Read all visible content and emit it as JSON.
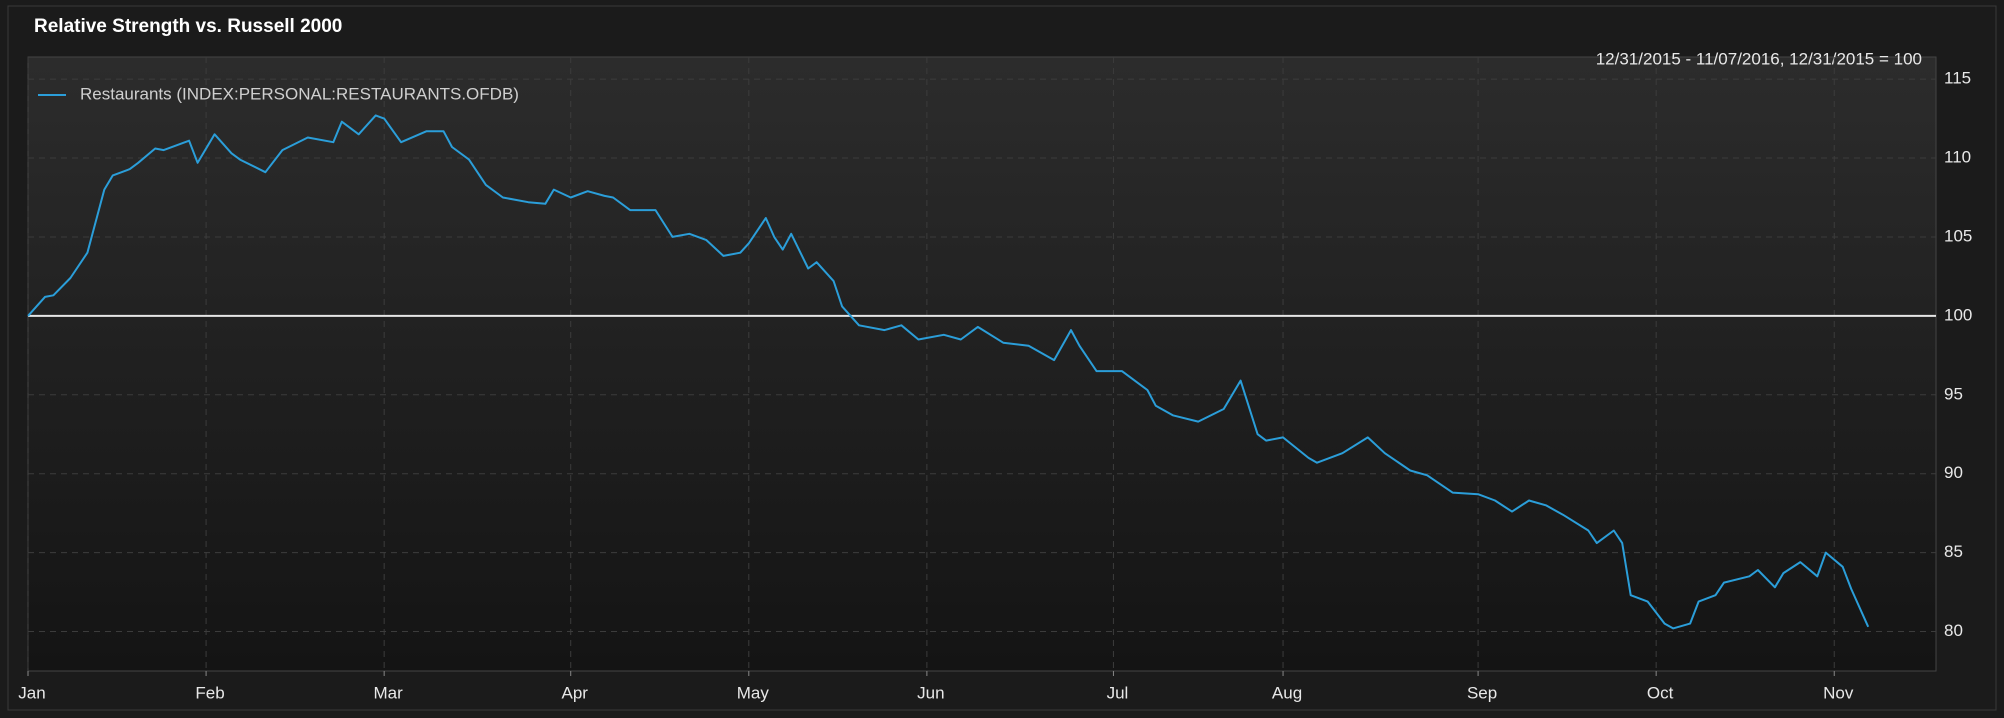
{
  "chart_data": {
    "type": "line",
    "title": "Relative Strength vs. Russell 2000",
    "subtitle": "12/31/2015 - 11/07/2016, 12/31/2015 = 100",
    "x": [
      0,
      2,
      3,
      5,
      7,
      9,
      10,
      12,
      13,
      15,
      16,
      19,
      20,
      22,
      24,
      25,
      28,
      30,
      33,
      36,
      37,
      39,
      41,
      42,
      44,
      47,
      49,
      50,
      52,
      54,
      56,
      59,
      61,
      62,
      64,
      66,
      68,
      69,
      71,
      74,
      76,
      78,
      80,
      82,
      84,
      85,
      87,
      88,
      89,
      90,
      92,
      93,
      95,
      96,
      98,
      101,
      103,
      105,
      108,
      110,
      112,
      115,
      118,
      121,
      123,
      124,
      126,
      129,
      132,
      133,
      135,
      138,
      141,
      143,
      145,
      146,
      148,
      151,
      152,
      155,
      158,
      160,
      163,
      165,
      168,
      171,
      173,
      175,
      177,
      179,
      181,
      184,
      185,
      187,
      188,
      189,
      191,
      193,
      194,
      196,
      197,
      199,
      200,
      203,
      204,
      206,
      207,
      209,
      211,
      212,
      214,
      215,
      217
    ],
    "series": [
      {
        "name": "Restaurants (INDEX:PERSONAL:RESTAURANTS.OFDB)",
        "color": "#2b9ed9",
        "values": [
          100,
          101.2,
          101.3,
          102.4,
          104,
          108,
          108.9,
          109.3,
          109.7,
          110.6,
          110.5,
          111.1,
          109.7,
          111.5,
          110.3,
          109.9,
          109.1,
          110.5,
          111.3,
          111,
          112.3,
          111.5,
          112.7,
          112.5,
          111,
          111.7,
          111.7,
          110.7,
          109.9,
          108.3,
          107.5,
          107.2,
          107.1,
          108,
          107.5,
          107.9,
          107.6,
          107.5,
          106.7,
          106.7,
          105,
          105.2,
          104.8,
          103.8,
          104,
          104.6,
          106.2,
          105,
          104.2,
          105.2,
          103,
          103.4,
          102.2,
          100.6,
          99.4,
          99.1,
          99.4,
          98.5,
          98.8,
          98.5,
          99.3,
          98.3,
          98.1,
          97.2,
          99.1,
          98.1,
          96.5,
          96.5,
          95.3,
          94.3,
          93.7,
          93.3,
          94.1,
          95.9,
          92.5,
          92.1,
          92.3,
          91,
          90.7,
          91.3,
          92.3,
          91.3,
          90.2,
          89.9,
          88.8,
          88.7,
          88.3,
          87.6,
          88.3,
          88,
          87.4,
          86.4,
          85.6,
          86.4,
          85.6,
          82.3,
          81.9,
          80.5,
          80.2,
          80.5,
          81.9,
          82.3,
          83.1,
          83.5,
          83.9,
          82.8,
          83.7,
          84.4,
          83.5,
          85,
          84.1,
          82.7,
          80.3
        ]
      }
    ],
    "xlim": [
      0,
      225
    ],
    "xticks": [
      {
        "value": 0,
        "label": "Jan"
      },
      {
        "value": 21,
        "label": "Feb"
      },
      {
        "value": 42,
        "label": "Mar"
      },
      {
        "value": 64,
        "label": "Apr"
      },
      {
        "value": 85,
        "label": "May"
      },
      {
        "value": 106,
        "label": "Jun"
      },
      {
        "value": 128,
        "label": "Jul"
      },
      {
        "value": 148,
        "label": "Aug"
      },
      {
        "value": 171,
        "label": "Sep"
      },
      {
        "value": 192,
        "label": "Oct"
      },
      {
        "value": 213,
        "label": "Nov"
      }
    ],
    "ylim": [
      77.5,
      116.4
    ],
    "yticks": [
      80,
      85,
      90,
      95,
      100,
      105,
      110,
      115
    ],
    "baseline": 100,
    "baseline_color": "#e6e6e6",
    "grid": true
  }
}
